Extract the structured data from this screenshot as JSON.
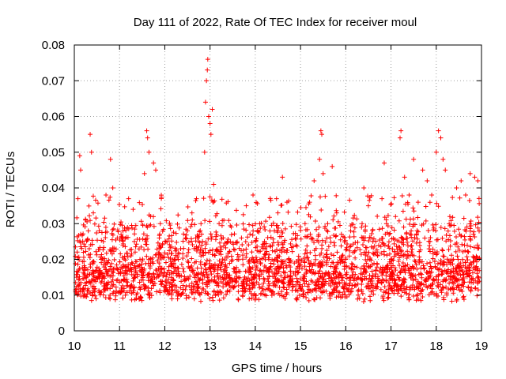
{
  "chart_data": {
    "type": "scatter",
    "title": "Day 111 of 2022, Rate Of TEC Index for receiver moul",
    "xlabel": "GPS time / hours",
    "ylabel": "ROTI / TECUs",
    "xlim": [
      10,
      19
    ],
    "ylim": [
      0,
      0.08
    ],
    "x_ticks": [
      10,
      11,
      12,
      13,
      14,
      15,
      16,
      17,
      18,
      19
    ],
    "x_tick_labels": [
      "10",
      "11",
      "12",
      "13",
      "14",
      "15",
      "16",
      "17",
      "18",
      "19"
    ],
    "y_ticks": [
      0,
      0.01,
      0.02,
      0.03,
      0.04,
      0.05,
      0.06,
      0.07,
      0.08
    ],
    "y_tick_labels": [
      "0",
      "0.01",
      "0.02",
      "0.03",
      "0.04",
      "0.05",
      "0.06",
      "0.07",
      "0.08"
    ],
    "grid": true,
    "marker": "+",
    "color": "#ff0000",
    "series": [
      {
        "name": "ROTI",
        "points": [
          [
            10.05,
            0.015
          ],
          [
            10.08,
            0.037
          ],
          [
            10.12,
            0.049
          ],
          [
            10.14,
            0.045
          ],
          [
            10.2,
            0.022
          ],
          [
            10.25,
            0.031
          ],
          [
            10.35,
            0.055
          ],
          [
            10.38,
            0.05
          ],
          [
            10.42,
            0.033
          ],
          [
            10.55,
            0.028
          ],
          [
            10.7,
            0.038
          ],
          [
            10.8,
            0.048
          ],
          [
            10.85,
            0.04
          ],
          [
            10.95,
            0.026
          ],
          [
            11.1,
            0.018
          ],
          [
            11.2,
            0.037
          ],
          [
            11.3,
            0.034
          ],
          [
            11.45,
            0.02
          ],
          [
            11.55,
            0.044
          ],
          [
            11.6,
            0.056
          ],
          [
            11.62,
            0.054
          ],
          [
            11.65,
            0.05
          ],
          [
            11.75,
            0.047
          ],
          [
            11.8,
            0.045
          ],
          [
            11.9,
            0.03
          ],
          [
            12.05,
            0.025
          ],
          [
            12.15,
            0.018
          ],
          [
            12.3,
            0.02
          ],
          [
            12.5,
            0.028
          ],
          [
            12.6,
            0.033
          ],
          [
            12.7,
            0.037
          ],
          [
            12.8,
            0.03
          ],
          [
            12.88,
            0.05
          ],
          [
            12.9,
            0.064
          ],
          [
            12.92,
            0.07
          ],
          [
            12.94,
            0.073
          ],
          [
            12.95,
            0.076
          ],
          [
            12.97,
            0.06
          ],
          [
            13.0,
            0.058
          ],
          [
            13.02,
            0.055
          ],
          [
            13.05,
            0.062
          ],
          [
            13.08,
            0.041
          ],
          [
            13.2,
            0.03
          ],
          [
            13.4,
            0.025
          ],
          [
            13.6,
            0.02
          ],
          [
            13.8,
            0.035
          ],
          [
            13.95,
            0.038
          ],
          [
            14.1,
            0.03
          ],
          [
            14.3,
            0.02
          ],
          [
            14.5,
            0.033
          ],
          [
            14.6,
            0.043
          ],
          [
            14.7,
            0.036
          ],
          [
            14.9,
            0.024
          ],
          [
            15.1,
            0.03
          ],
          [
            15.2,
            0.036
          ],
          [
            15.3,
            0.042
          ],
          [
            15.42,
            0.048
          ],
          [
            15.45,
            0.056
          ],
          [
            15.47,
            0.055
          ],
          [
            15.5,
            0.044
          ],
          [
            15.6,
            0.03
          ],
          [
            15.7,
            0.046
          ],
          [
            15.8,
            0.033
          ],
          [
            16.0,
            0.02
          ],
          [
            16.2,
            0.018
          ],
          [
            16.4,
            0.04
          ],
          [
            16.5,
            0.035
          ],
          [
            16.6,
            0.025
          ],
          [
            16.8,
            0.037
          ],
          [
            16.85,
            0.047
          ],
          [
            16.9,
            0.03
          ],
          [
            17.0,
            0.02
          ],
          [
            17.1,
            0.032
          ],
          [
            17.2,
            0.054
          ],
          [
            17.22,
            0.056
          ],
          [
            17.3,
            0.043
          ],
          [
            17.4,
            0.038
          ],
          [
            17.5,
            0.048
          ],
          [
            17.6,
            0.036
          ],
          [
            17.7,
            0.045
          ],
          [
            17.8,
            0.042
          ],
          [
            17.9,
            0.038
          ],
          [
            18.0,
            0.05
          ],
          [
            18.05,
            0.056
          ],
          [
            18.1,
            0.054
          ],
          [
            18.15,
            0.048
          ],
          [
            18.2,
            0.045
          ],
          [
            18.3,
            0.032
          ],
          [
            18.45,
            0.04
          ],
          [
            18.55,
            0.042
          ],
          [
            18.65,
            0.038
          ],
          [
            18.75,
            0.044
          ],
          [
            18.85,
            0.043
          ],
          [
            18.92,
            0.042
          ]
        ]
      }
    ]
  }
}
